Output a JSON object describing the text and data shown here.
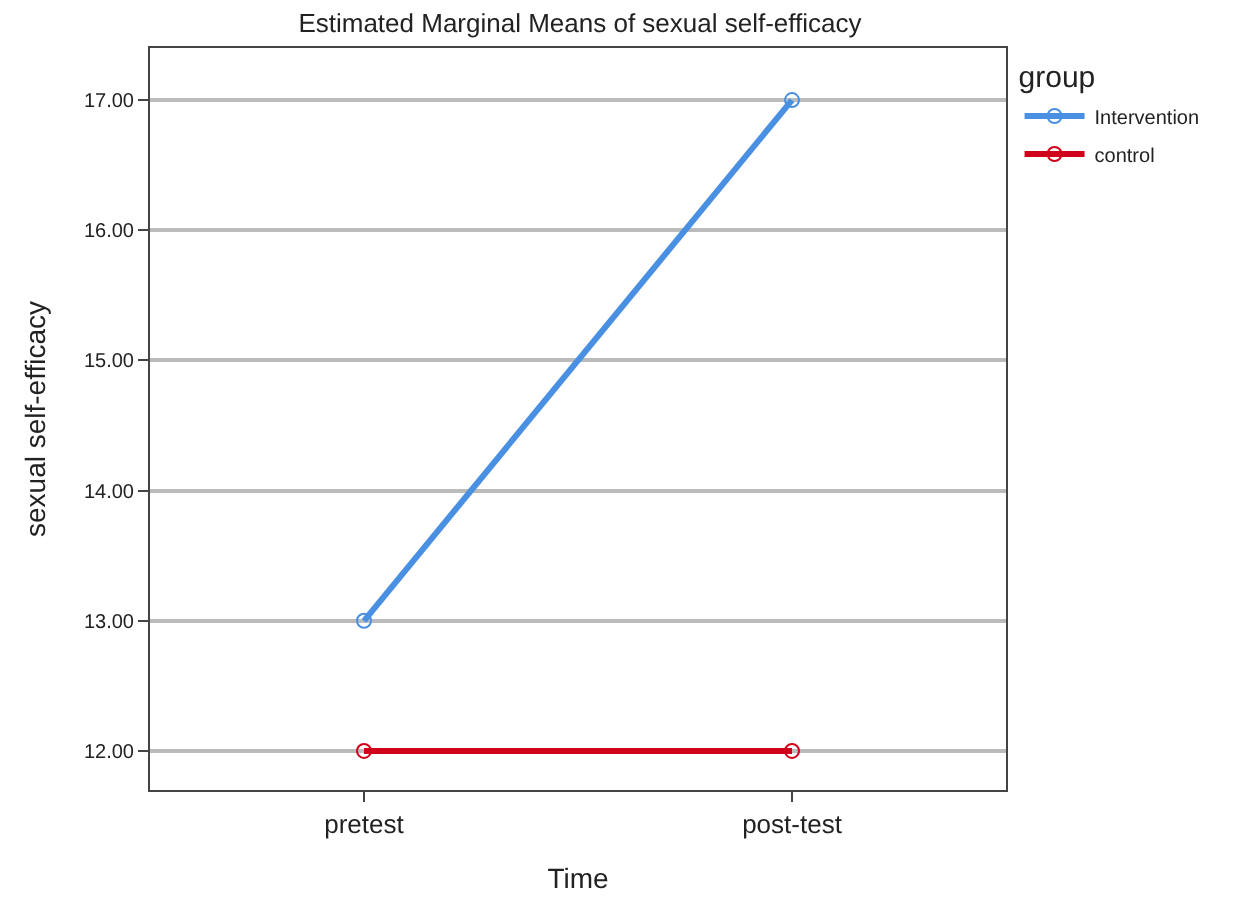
{
  "chart_data": {
    "type": "line",
    "title": "Estimated Marginal Means of sexual self-efficacy",
    "xlabel": "Time",
    "ylabel": "sexual self-efficacy",
    "legend_title": "group",
    "categories": [
      "pretest",
      "post-test"
    ],
    "series": [
      {
        "name": "Intervention",
        "color": "#4a90e2",
        "values": [
          13,
          17
        ]
      },
      {
        "name": "control",
        "color": "#d0021b",
        "values": [
          12,
          12
        ]
      }
    ],
    "ylim": [
      11.7,
      17.4
    ],
    "yticks": [
      {
        "value": 12,
        "label": "12.00"
      },
      {
        "value": 13,
        "label": "13.00"
      },
      {
        "value": 14,
        "label": "14.00"
      },
      {
        "value": 15,
        "label": "15.00"
      },
      {
        "value": 16,
        "label": "16.00"
      },
      {
        "value": 17,
        "label": "17.00"
      }
    ],
    "grid": "y",
    "legend": "top right",
    "marker": "circle",
    "line_style": "solid"
  }
}
